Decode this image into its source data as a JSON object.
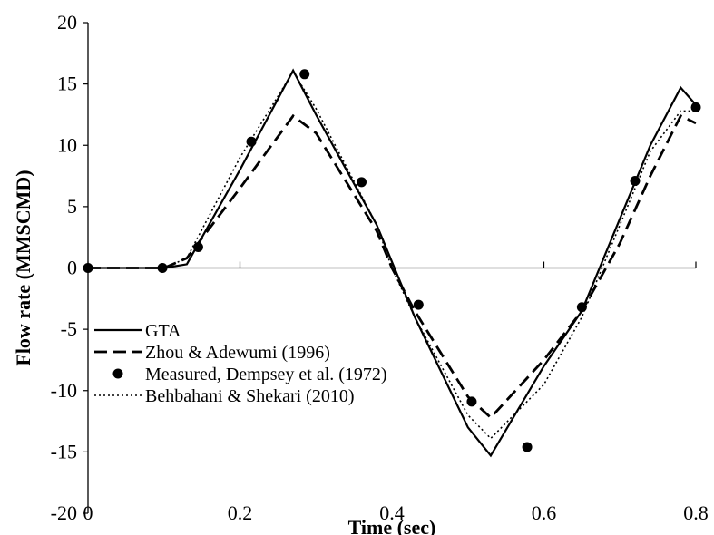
{
  "chart_data": {
    "type": "line",
    "xlabel": "Time (sec)",
    "ylabel": "Flow rate (MMSCMD)",
    "xlim": [
      0,
      0.8
    ],
    "ylim": [
      -20,
      20
    ],
    "xticks": [
      0,
      0.2,
      0.4,
      0.6,
      0.8
    ],
    "yticks": [
      -20,
      -15,
      -10,
      -5,
      0,
      5,
      10,
      15,
      20
    ],
    "xtick_labels": [
      "0",
      "0.2",
      "0.4",
      "0.6",
      "0.8"
    ],
    "ytick_labels": [
      "-20",
      "-15",
      "-10",
      "-5",
      "0",
      "5",
      "10",
      "15",
      "20"
    ],
    "grid": false,
    "legend_position": "bottom-left",
    "series": [
      {
        "name": "GTA",
        "style": "solid",
        "x": [
          0,
          0.1,
          0.13,
          0.2,
          0.27,
          0.3,
          0.38,
          0.4,
          0.43,
          0.5,
          0.53,
          0.6,
          0.65,
          0.7,
          0.74,
          0.78,
          0.8
        ],
        "y": [
          0,
          0,
          0.3,
          8.0,
          16.1,
          12.5,
          3.5,
          0.5,
          -4.0,
          -13.0,
          -15.3,
          -8.0,
          -3.5,
          4.0,
          10.0,
          14.7,
          13.3
        ]
      },
      {
        "name": "Zhou & Adewumi (1996)",
        "style": "dashed",
        "x": [
          0,
          0.1,
          0.13,
          0.2,
          0.27,
          0.3,
          0.38,
          0.4,
          0.43,
          0.5,
          0.53,
          0.6,
          0.65,
          0.7,
          0.74,
          0.78,
          0.8
        ],
        "y": [
          0,
          0,
          0.8,
          6.5,
          12.4,
          11.0,
          3.0,
          0.0,
          -3.5,
          -10.5,
          -12.2,
          -7.5,
          -3.5,
          2.0,
          7.5,
          12.4,
          11.8
        ]
      },
      {
        "name": "Measured, Dempsey et al. (1972)",
        "style": "markers",
        "x": [
          0,
          0.098,
          0.145,
          0.215,
          0.285,
          0.36,
          0.435,
          0.505,
          0.578,
          0.65,
          0.72,
          0.8
        ],
        "y": [
          0,
          0,
          1.7,
          10.3,
          15.8,
          7.0,
          -3.0,
          -10.9,
          -14.6,
          -3.2,
          7.1,
          13.1
        ]
      },
      {
        "name": "Behbahani & Shekari (2010)",
        "style": "dotted",
        "x": [
          0,
          0.1,
          0.13,
          0.2,
          0.27,
          0.3,
          0.38,
          0.4,
          0.43,
          0.5,
          0.53,
          0.6,
          0.65,
          0.7,
          0.74,
          0.78,
          0.8
        ],
        "y": [
          0,
          0,
          0.8,
          9.0,
          16.0,
          13.0,
          3.5,
          0.0,
          -4.0,
          -12.0,
          -13.9,
          -9.5,
          -4.0,
          3.5,
          9.5,
          12.8,
          12.8
        ]
      }
    ]
  }
}
